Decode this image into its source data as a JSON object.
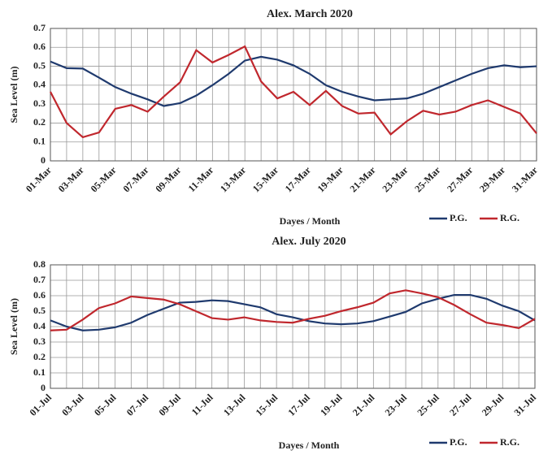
{
  "chart_data": [
    {
      "type": "line",
      "title": "Alex. March 2020",
      "x_label": "Dayes / Month",
      "y_label": "Sea Level (m)",
      "categories": [
        "01-Mar",
        null,
        "03-Mar",
        null,
        "05-Mar",
        null,
        "07-Mar",
        null,
        "09-Mar",
        null,
        "11-Mar",
        null,
        "13-Mar",
        null,
        "15-Mar",
        null,
        "17-Mar",
        null,
        "19-Mar",
        null,
        "21-Mar",
        null,
        "23-Mar",
        null,
        "25-Mar",
        null,
        "27-Mar",
        null,
        "29-Mar",
        null,
        "31-Mar"
      ],
      "series": [
        {
          "name": "P.G.",
          "color": "#1f3a6e",
          "values": [
            0.525,
            0.49,
            0.488,
            0.44,
            0.39,
            0.355,
            0.325,
            0.29,
            0.305,
            0.345,
            0.4,
            0.46,
            0.53,
            0.55,
            0.535,
            0.505,
            0.46,
            0.4,
            0.365,
            0.34,
            0.32,
            0.325,
            0.33,
            0.355,
            0.39,
            0.425,
            0.46,
            0.49,
            0.505,
            0.495,
            0.5
          ]
        },
        {
          "name": "R.G.",
          "color": "#c0272d",
          "values": [
            0.365,
            0.2,
            0.125,
            0.15,
            0.275,
            0.295,
            0.26,
            0.34,
            0.415,
            0.585,
            0.52,
            0.56,
            0.605,
            0.42,
            0.33,
            0.365,
            0.295,
            0.37,
            0.29,
            0.25,
            0.255,
            0.14,
            0.21,
            0.265,
            0.245,
            0.26,
            0.295,
            0.32,
            0.285,
            0.25,
            0.145
          ]
        }
      ],
      "ylim": [
        0,
        0.7
      ],
      "yticks": [
        0,
        0.1,
        0.2,
        0.3,
        0.4,
        0.5,
        0.6,
        0.7
      ],
      "grid": true
    },
    {
      "type": "line",
      "title": "Alex. July 2020",
      "x_label": "Dayes / Month",
      "y_label": "Sea Level (m)",
      "categories": [
        "01-Jul",
        null,
        "03-Jul",
        null,
        "05-Jul",
        null,
        "07-Jul",
        null,
        "09-Jul",
        null,
        "11-Jul",
        null,
        "13-Jul",
        null,
        "15-Jul",
        null,
        "17-Jul",
        null,
        "19-Jul",
        null,
        "21-Jul",
        null,
        "23-Jul",
        null,
        "25-Jul",
        null,
        "27-Jul",
        null,
        "29-Jul",
        null,
        "31-Jul"
      ],
      "series": [
        {
          "name": "P.G.",
          "color": "#1f3a6e",
          "values": [
            0.44,
            0.4,
            0.375,
            0.38,
            0.395,
            0.425,
            0.475,
            0.515,
            0.555,
            0.56,
            0.57,
            0.565,
            0.545,
            0.525,
            0.48,
            0.46,
            0.435,
            0.42,
            0.415,
            0.42,
            0.435,
            0.465,
            0.495,
            0.55,
            0.58,
            0.605,
            0.605,
            0.58,
            0.535,
            0.5,
            0.44
          ]
        },
        {
          "name": "R.G.",
          "color": "#c0272d",
          "values": [
            0.375,
            0.38,
            0.445,
            0.52,
            0.55,
            0.595,
            0.585,
            0.575,
            0.545,
            0.5,
            0.455,
            0.445,
            0.46,
            0.44,
            0.43,
            0.425,
            0.45,
            0.47,
            0.5,
            0.525,
            0.555,
            0.615,
            0.635,
            0.615,
            0.59,
            0.54,
            0.48,
            0.425,
            0.41,
            0.39,
            0.45
          ]
        }
      ],
      "ylim": [
        0,
        0.8
      ],
      "yticks": [
        0,
        0.1,
        0.2,
        0.3,
        0.4,
        0.5,
        0.6,
        0.7,
        0.8
      ],
      "grid": true
    }
  ]
}
